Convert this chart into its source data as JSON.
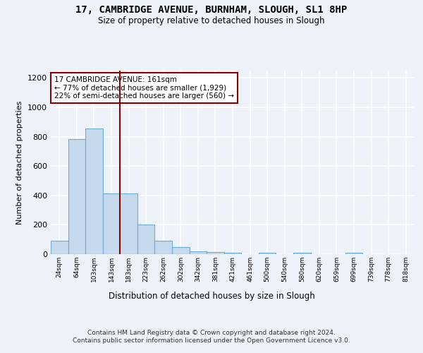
{
  "title1": "17, CAMBRIDGE AVENUE, BURNHAM, SLOUGH, SL1 8HP",
  "title2": "Size of property relative to detached houses in Slough",
  "xlabel": "Distribution of detached houses by size in Slough",
  "ylabel": "Number of detached properties",
  "footer": "Contains HM Land Registry data © Crown copyright and database right 2024.\nContains public sector information licensed under the Open Government Licence v3.0.",
  "bin_labels": [
    "24sqm",
    "64sqm",
    "103sqm",
    "143sqm",
    "183sqm",
    "223sqm",
    "262sqm",
    "302sqm",
    "342sqm",
    "381sqm",
    "421sqm",
    "461sqm",
    "500sqm",
    "540sqm",
    "580sqm",
    "620sqm",
    "659sqm",
    "699sqm",
    "739sqm",
    "778sqm",
    "818sqm"
  ],
  "bar_values": [
    90,
    785,
    855,
    415,
    415,
    200,
    90,
    50,
    20,
    15,
    10,
    0,
    10,
    0,
    10,
    0,
    0,
    10,
    0,
    0,
    0
  ],
  "bar_color": "#c5d8ec",
  "bar_edge_color": "#6aaed6",
  "vline_x_index": 3.5,
  "vline_color": "#8b0000",
  "annotation_text": "17 CAMBRIDGE AVENUE: 161sqm\n← 77% of detached houses are smaller (1,929)\n22% of semi-detached houses are larger (560) →",
  "annotation_box_color": "white",
  "annotation_box_edge": "#8b0000",
  "ylim": [
    0,
    1250
  ],
  "yticks": [
    0,
    200,
    400,
    600,
    800,
    1000,
    1200
  ],
  "background_color": "#eef2f9",
  "grid_color": "white"
}
